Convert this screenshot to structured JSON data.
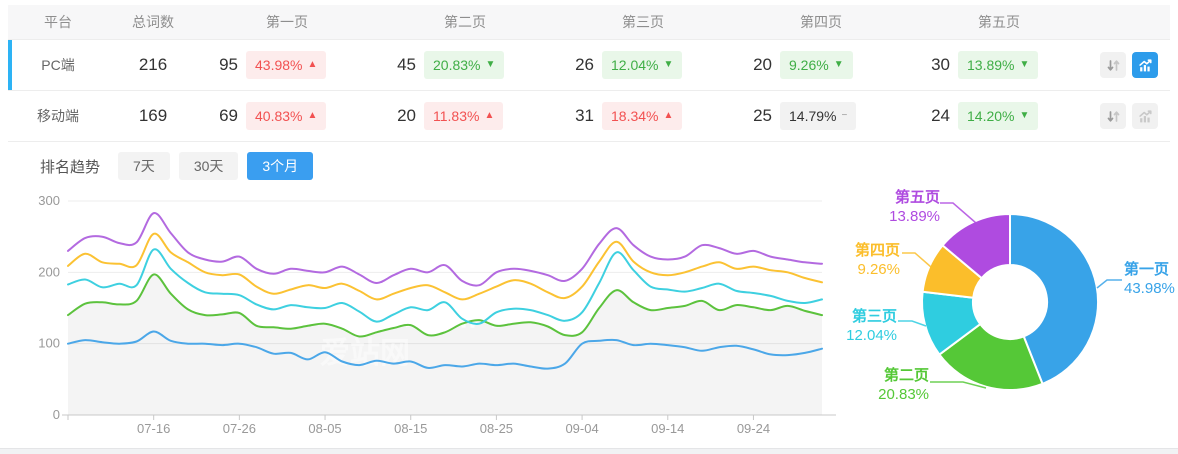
{
  "table": {
    "headers": {
      "platform": "平台",
      "total": "总词数",
      "pages": [
        "第一页",
        "第二页",
        "第三页",
        "第四页",
        "第五页"
      ]
    },
    "trend_symbols": {
      "up": "▲",
      "down": "▼",
      "flat": "−"
    },
    "rows": [
      {
        "platform": "PC端",
        "total": "216",
        "selected": true,
        "trend_chart_active": true,
        "pages": [
          {
            "count": "95",
            "pct": "43.98%",
            "trend": "up"
          },
          {
            "count": "45",
            "pct": "20.83%",
            "trend": "down"
          },
          {
            "count": "26",
            "pct": "12.04%",
            "trend": "down"
          },
          {
            "count": "20",
            "pct": "9.26%",
            "trend": "down"
          },
          {
            "count": "30",
            "pct": "13.89%",
            "trend": "down"
          }
        ]
      },
      {
        "platform": "移动端",
        "total": "169",
        "selected": false,
        "trend_chart_active": false,
        "pages": [
          {
            "count": "69",
            "pct": "40.83%",
            "trend": "up"
          },
          {
            "count": "20",
            "pct": "11.83%",
            "trend": "up"
          },
          {
            "count": "31",
            "pct": "18.34%",
            "trend": "up"
          },
          {
            "count": "25",
            "pct": "14.79%",
            "trend": "flat"
          },
          {
            "count": "24",
            "pct": "14.20%",
            "trend": "down"
          }
        ]
      }
    ],
    "row_action_icons": [
      "sort-arrows-icon",
      "trend-chart-icon"
    ]
  },
  "trend_section": {
    "title": "排名趋势",
    "ranges": [
      {
        "label": "7天",
        "active": false
      },
      {
        "label": "30天",
        "active": false
      },
      {
        "label": "3个月",
        "active": true
      }
    ]
  },
  "watermark": "爱站网",
  "colors": {
    "accent_blue": "#3a9ef0",
    "selected_row_bar": "#2db3f5",
    "active_icon_bg": "#2d9ceb",
    "up_red": "#f25151",
    "up_red_bg": "#fdecec",
    "down_green": "#3fae46",
    "down_green_bg": "#e9f7e9",
    "flat_bg": "#f2f2f2",
    "axis_text": "#999999",
    "grid_line": "#ededed"
  },
  "chart_data": [
    {
      "type": "line",
      "title": "排名趋势（3个月）",
      "xlabel": "",
      "ylabel": "",
      "ylim": [
        0,
        300
      ],
      "y_ticks": [
        0,
        100,
        200,
        300
      ],
      "grid": true,
      "x_range_days": [
        0,
        88
      ],
      "x_tick_days": [
        10,
        20,
        30,
        40,
        50,
        60,
        70,
        80
      ],
      "x_tick_labels": [
        "07-16",
        "07-26",
        "08-05",
        "08-15",
        "08-25",
        "09-04",
        "09-14",
        "09-24"
      ],
      "series": [
        {
          "name": "第一页",
          "color": "#4ba7e8",
          "values": [
            100,
            105,
            102,
            100,
            103,
            117,
            104,
            100,
            100,
            98,
            100,
            95,
            86,
            87,
            78,
            88,
            75,
            70,
            76,
            72,
            75,
            66,
            70,
            68,
            72,
            70,
            72,
            68,
            65,
            72,
            100,
            104,
            105,
            98,
            100,
            98,
            95,
            90,
            95,
            97,
            92,
            85,
            84,
            87,
            93
          ]
        },
        {
          "name": "第二页",
          "color": "#5cc23d",
          "area_fill": "rgba(0,0,0,0.045)",
          "values": [
            140,
            156,
            158,
            155,
            160,
            197,
            170,
            148,
            140,
            141,
            143,
            125,
            123,
            121,
            125,
            128,
            121,
            110,
            116,
            122,
            126,
            112,
            116,
            128,
            133,
            125,
            128,
            130,
            124,
            112,
            116,
            150,
            175,
            158,
            147,
            150,
            153,
            160,
            147,
            154,
            151,
            147,
            153,
            146,
            140
          ]
        },
        {
          "name": "第三页",
          "color": "#3ed0e0",
          "values": [
            183,
            190,
            179,
            184,
            182,
            232,
            205,
            185,
            172,
            170,
            168,
            155,
            148,
            154,
            151,
            150,
            157,
            145,
            131,
            141,
            151,
            147,
            158,
            135,
            128,
            144,
            149,
            147,
            140,
            132,
            144,
            185,
            228,
            203,
            180,
            176,
            173,
            178,
            184,
            174,
            171,
            167,
            160,
            157,
            162
          ]
        },
        {
          "name": "第四页",
          "color": "#fbc233",
          "values": [
            209,
            226,
            214,
            212,
            210,
            254,
            228,
            214,
            200,
            196,
            197,
            180,
            170,
            176,
            182,
            178,
            184,
            174,
            162,
            170,
            178,
            182,
            172,
            162,
            170,
            180,
            189,
            184,
            172,
            164,
            180,
            215,
            243,
            215,
            200,
            196,
            200,
            208,
            214,
            205,
            208,
            203,
            200,
            192,
            186
          ]
        },
        {
          "name": "第五页",
          "color": "#b36ae0",
          "values": [
            230,
            248,
            250,
            241,
            242,
            283,
            255,
            228,
            218,
            215,
            222,
            205,
            198,
            205,
            202,
            200,
            208,
            197,
            185,
            196,
            205,
            200,
            210,
            188,
            182,
            200,
            205,
            202,
            196,
            188,
            205,
            240,
            262,
            238,
            222,
            218,
            222,
            238,
            234,
            226,
            230,
            222,
            218,
            214,
            212
          ]
        }
      ]
    },
    {
      "type": "pie",
      "donut": true,
      "start_angle_deg": 0,
      "clockwise": true,
      "slices": [
        {
          "label": "第一页",
          "value": 43.98,
          "display": "43.98%",
          "color": "#38a3e8"
        },
        {
          "label": "第二页",
          "value": 20.83,
          "display": "20.83%",
          "color": "#55c837"
        },
        {
          "label": "第三页",
          "value": 12.04,
          "display": "12.04%",
          "color": "#2fcde0"
        },
        {
          "label": "第四页",
          "value": 9.26,
          "display": "9.26%",
          "color": "#fbbe2b"
        },
        {
          "label": "第五页",
          "value": 13.89,
          "display": "13.89%",
          "color": "#af4be0"
        }
      ]
    }
  ]
}
